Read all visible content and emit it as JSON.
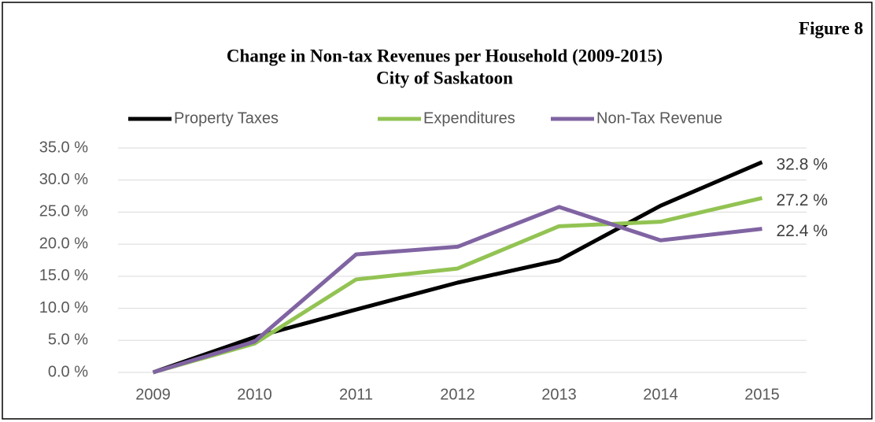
{
  "chart_data": {
    "type": "line",
    "title": "Change in Non-tax Revenues per Household (2009-2015)",
    "subtitle": "City of Saskatoon",
    "annotation": "Figure 8",
    "categories": [
      "2009",
      "2010",
      "2011",
      "2012",
      "2013",
      "2014",
      "2015"
    ],
    "series": [
      {
        "name": "Property Taxes",
        "color": "#000000",
        "values": [
          0,
          5.5,
          9.8,
          14.0,
          17.5,
          26.0,
          32.8
        ],
        "value_labels": [
          null,
          null,
          null,
          null,
          null,
          null,
          "32.8 %"
        ]
      },
      {
        "name": "Expenditures",
        "color": "#92c353",
        "values": [
          0,
          4.5,
          14.5,
          16.2,
          22.8,
          23.5,
          27.2
        ],
        "value_labels": [
          null,
          null,
          null,
          null,
          null,
          null,
          "27.2 %"
        ]
      },
      {
        "name": "Non-Tax Revenue",
        "color": "#8064a2",
        "values": [
          0,
          4.8,
          18.4,
          19.6,
          25.8,
          20.6,
          22.4
        ],
        "value_labels": [
          null,
          null,
          null,
          null,
          null,
          null,
          "22.4 %"
        ]
      }
    ],
    "ylim": [
      0,
      35
    ],
    "yticks": [
      {
        "value": 0,
        "label": "0.0 %"
      },
      {
        "value": 5,
        "label": "5.0 %"
      },
      {
        "value": 10,
        "label": "10.0 %"
      },
      {
        "value": 15,
        "label": "15.0 %"
      },
      {
        "value": 20,
        "label": "20.0 %"
      },
      {
        "value": 25,
        "label": "25.0 %"
      },
      {
        "value": 30,
        "label": "30.0 %"
      },
      {
        "value": 35,
        "label": "35.0 %"
      }
    ],
    "grid": true,
    "legend": "top"
  }
}
